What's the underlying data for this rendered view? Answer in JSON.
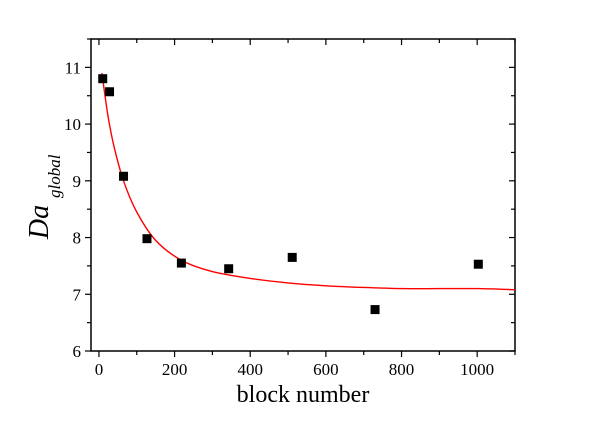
{
  "chart_data": {
    "type": "scatter",
    "title": "",
    "xlabel": "block number",
    "ylabel": {
      "main": "Da",
      "subscript": "global"
    },
    "xlim": [
      -21,
      1100
    ],
    "ylim": [
      6,
      11.5
    ],
    "xticks": [
      0,
      200,
      400,
      600,
      800,
      1000
    ],
    "yticks": [
      6,
      7,
      8,
      9,
      10,
      11
    ],
    "grid": false,
    "series": [
      {
        "name": "data",
        "marker": "square",
        "color": "#000000",
        "x": [
          10,
          28,
          65,
          127,
          218,
          343,
          511,
          730,
          1003
        ],
        "y": [
          10.8,
          10.57,
          9.08,
          7.98,
          7.55,
          7.45,
          7.65,
          6.73,
          7.53
        ]
      },
      {
        "name": "fit",
        "style": "line",
        "color": "#ff0000",
        "x": [
          8,
          15,
          25,
          40,
          65,
          100,
          150,
          218,
          300,
          400,
          500,
          600,
          700,
          800,
          900,
          1000,
          1100
        ],
        "y": [
          10.9,
          10.55,
          10.1,
          9.6,
          9.0,
          8.45,
          7.95,
          7.6,
          7.4,
          7.28,
          7.2,
          7.15,
          7.12,
          7.1,
          7.1,
          7.1,
          7.08
        ]
      }
    ]
  }
}
